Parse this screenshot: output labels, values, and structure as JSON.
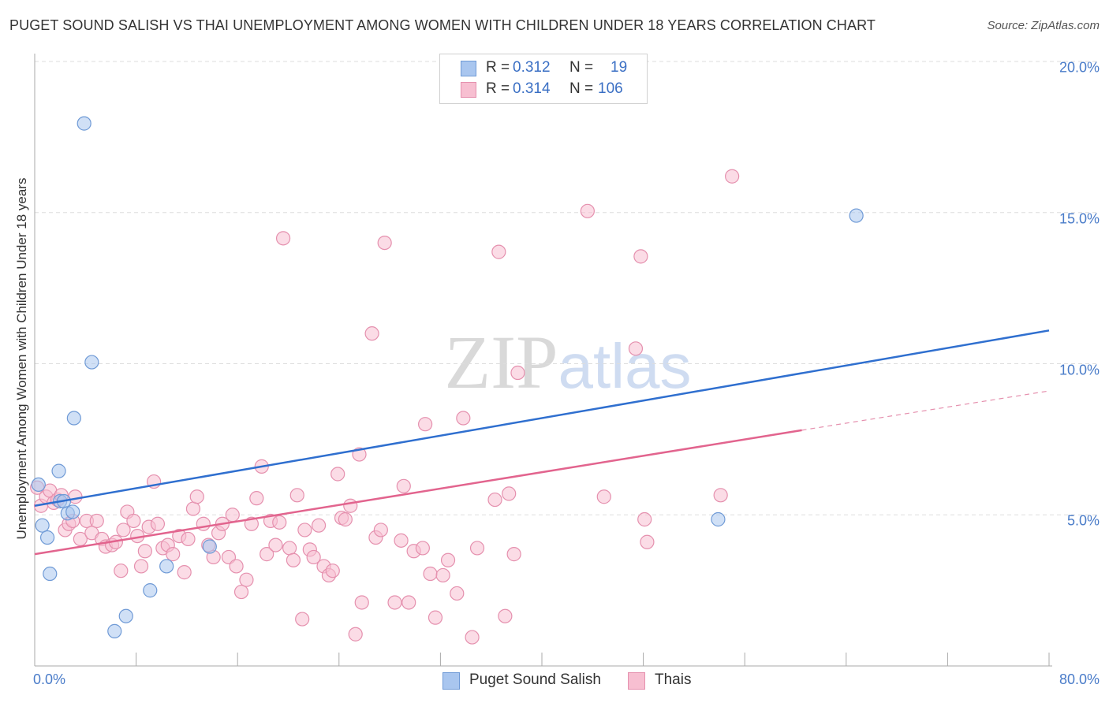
{
  "chart_data": {
    "type": "scatter",
    "title": "PUGET SOUND SALISH VS THAI UNEMPLOYMENT AMONG WOMEN WITH CHILDREN UNDER 18 YEARS CORRELATION CHART",
    "source": "Source: ZipAtlas.com",
    "xlabel": "",
    "ylabel": "Unemployment Among Women with Children Under 18 years",
    "xlim": [
      0,
      80
    ],
    "ylim": [
      0,
      20
    ],
    "x_tick_labels": [
      "0.0%",
      "80.0%"
    ],
    "y_ticks": [
      {
        "value": 5,
        "label": "5.0%"
      },
      {
        "value": 10,
        "label": "10.0%"
      },
      {
        "value": 15,
        "label": "15.0%"
      },
      {
        "value": 20,
        "label": "20.0%"
      }
    ],
    "watermark": "ZIPatlas",
    "legend": [
      {
        "name": "Puget Sound Salish",
        "color": "#a9c6ef",
        "edge": "#6f9ad6"
      },
      {
        "name": "Thais",
        "color": "#f7bfd1",
        "edge": "#e590ae"
      }
    ],
    "stats": [
      {
        "r_label": "R = ",
        "r": "0.312",
        "n_label": "N = ",
        "n": "19"
      },
      {
        "r_label": "R = ",
        "r": "0.314",
        "n_label": "N = ",
        "n": "106"
      }
    ],
    "series": [
      {
        "name": "Puget Sound Salish",
        "color": "#a9c6ef",
        "edge": "#6f9ad6",
        "line_color": "#2f6fcf",
        "trend": {
          "x0": 0,
          "y0": 5.3,
          "x1": 80,
          "y1": 11.1
        },
        "points": [
          {
            "x": 0.3,
            "y": 6.0
          },
          {
            "x": 0.6,
            "y": 4.65
          },
          {
            "x": 1.0,
            "y": 4.25
          },
          {
            "x": 1.2,
            "y": 3.05
          },
          {
            "x": 1.9,
            "y": 6.45
          },
          {
            "x": 2.0,
            "y": 5.45
          },
          {
            "x": 2.3,
            "y": 5.45
          },
          {
            "x": 2.6,
            "y": 5.05
          },
          {
            "x": 3.0,
            "y": 5.1
          },
          {
            "x": 3.1,
            "y": 8.2
          },
          {
            "x": 3.9,
            "y": 17.95
          },
          {
            "x": 4.5,
            "y": 10.05
          },
          {
            "x": 6.3,
            "y": 1.15
          },
          {
            "x": 7.2,
            "y": 1.65
          },
          {
            "x": 9.1,
            "y": 2.5
          },
          {
            "x": 10.4,
            "y": 3.3
          },
          {
            "x": 13.8,
            "y": 3.95
          },
          {
            "x": 53.9,
            "y": 4.85
          },
          {
            "x": 64.8,
            "y": 14.9
          }
        ]
      },
      {
        "name": "Thais",
        "color": "#f7bfd1",
        "edge": "#e590ae",
        "line_color": "#e2648e",
        "trend": {
          "x0": 0,
          "y0": 3.7,
          "x1": 60.5,
          "y1": 7.8
        },
        "trend_dashed_to": {
          "x": 80,
          "y": 9.1
        },
        "points": [
          {
            "x": 0.2,
            "y": 5.9
          },
          {
            "x": 0.5,
            "y": 5.3
          },
          {
            "x": 0.9,
            "y": 5.6
          },
          {
            "x": 1.2,
            "y": 5.8
          },
          {
            "x": 1.5,
            "y": 5.4
          },
          {
            "x": 1.8,
            "y": 5.5
          },
          {
            "x": 2.1,
            "y": 5.65
          },
          {
            "x": 2.4,
            "y": 4.5
          },
          {
            "x": 2.7,
            "y": 4.7
          },
          {
            "x": 3.0,
            "y": 4.8
          },
          {
            "x": 3.2,
            "y": 5.6
          },
          {
            "x": 3.6,
            "y": 4.2
          },
          {
            "x": 4.1,
            "y": 4.8
          },
          {
            "x": 4.5,
            "y": 4.4
          },
          {
            "x": 4.9,
            "y": 4.8
          },
          {
            "x": 5.3,
            "y": 4.2
          },
          {
            "x": 5.6,
            "y": 3.95
          },
          {
            "x": 6.1,
            "y": 4.0
          },
          {
            "x": 6.4,
            "y": 4.1
          },
          {
            "x": 6.8,
            "y": 3.15
          },
          {
            "x": 7.0,
            "y": 4.5
          },
          {
            "x": 7.3,
            "y": 5.1
          },
          {
            "x": 7.8,
            "y": 4.8
          },
          {
            "x": 8.1,
            "y": 4.3
          },
          {
            "x": 8.4,
            "y": 3.3
          },
          {
            "x": 8.7,
            "y": 3.8
          },
          {
            "x": 9.0,
            "y": 4.6
          },
          {
            "x": 9.4,
            "y": 6.1
          },
          {
            "x": 9.7,
            "y": 4.7
          },
          {
            "x": 10.1,
            "y": 3.9
          },
          {
            "x": 10.5,
            "y": 4.0
          },
          {
            "x": 10.9,
            "y": 3.7
          },
          {
            "x": 11.4,
            "y": 4.3
          },
          {
            "x": 11.8,
            "y": 3.1
          },
          {
            "x": 12.1,
            "y": 4.2
          },
          {
            "x": 12.5,
            "y": 5.2
          },
          {
            "x": 12.8,
            "y": 5.6
          },
          {
            "x": 13.3,
            "y": 4.7
          },
          {
            "x": 13.7,
            "y": 4.0
          },
          {
            "x": 14.1,
            "y": 3.6
          },
          {
            "x": 14.5,
            "y": 4.4
          },
          {
            "x": 14.8,
            "y": 4.7
          },
          {
            "x": 15.3,
            "y": 3.6
          },
          {
            "x": 15.6,
            "y": 5.0
          },
          {
            "x": 15.9,
            "y": 3.3
          },
          {
            "x": 16.3,
            "y": 2.45
          },
          {
            "x": 16.7,
            "y": 2.85
          },
          {
            "x": 17.1,
            "y": 4.7
          },
          {
            "x": 17.5,
            "y": 5.55
          },
          {
            "x": 17.9,
            "y": 6.6
          },
          {
            "x": 18.3,
            "y": 3.7
          },
          {
            "x": 18.6,
            "y": 4.8
          },
          {
            "x": 19.0,
            "y": 4.0
          },
          {
            "x": 19.3,
            "y": 4.75
          },
          {
            "x": 19.6,
            "y": 14.15
          },
          {
            "x": 20.1,
            "y": 3.9
          },
          {
            "x": 20.4,
            "y": 3.5
          },
          {
            "x": 20.7,
            "y": 5.65
          },
          {
            "x": 21.1,
            "y": 1.55
          },
          {
            "x": 21.3,
            "y": 4.5
          },
          {
            "x": 21.7,
            "y": 3.85
          },
          {
            "x": 22.0,
            "y": 3.6
          },
          {
            "x": 22.4,
            "y": 4.65
          },
          {
            "x": 22.8,
            "y": 3.3
          },
          {
            "x": 23.2,
            "y": 3.0
          },
          {
            "x": 23.5,
            "y": 3.15
          },
          {
            "x": 23.9,
            "y": 6.35
          },
          {
            "x": 24.2,
            "y": 4.9
          },
          {
            "x": 24.5,
            "y": 4.85
          },
          {
            "x": 24.9,
            "y": 5.3
          },
          {
            "x": 25.3,
            "y": 1.05
          },
          {
            "x": 25.6,
            "y": 7.0
          },
          {
            "x": 25.8,
            "y": 2.1
          },
          {
            "x": 26.6,
            "y": 11.0
          },
          {
            "x": 26.9,
            "y": 4.25
          },
          {
            "x": 27.3,
            "y": 4.5
          },
          {
            "x": 27.6,
            "y": 14.0
          },
          {
            "x": 28.4,
            "y": 2.1
          },
          {
            "x": 28.9,
            "y": 4.15
          },
          {
            "x": 29.1,
            "y": 5.95
          },
          {
            "x": 29.5,
            "y": 2.1
          },
          {
            "x": 29.9,
            "y": 3.8
          },
          {
            "x": 30.6,
            "y": 3.9
          },
          {
            "x": 30.8,
            "y": 8.0
          },
          {
            "x": 31.2,
            "y": 3.05
          },
          {
            "x": 31.6,
            "y": 1.6
          },
          {
            "x": 32.2,
            "y": 3.0
          },
          {
            "x": 32.6,
            "y": 3.5
          },
          {
            "x": 33.3,
            "y": 2.4
          },
          {
            "x": 33.8,
            "y": 8.2
          },
          {
            "x": 34.5,
            "y": 0.95
          },
          {
            "x": 34.9,
            "y": 3.9
          },
          {
            "x": 36.3,
            "y": 5.5
          },
          {
            "x": 36.6,
            "y": 13.7
          },
          {
            "x": 37.1,
            "y": 1.65
          },
          {
            "x": 37.4,
            "y": 5.7
          },
          {
            "x": 37.8,
            "y": 3.7
          },
          {
            "x": 38.1,
            "y": 9.7
          },
          {
            "x": 43.6,
            "y": 15.05
          },
          {
            "x": 44.9,
            "y": 5.6
          },
          {
            "x": 47.4,
            "y": 10.5
          },
          {
            "x": 47.8,
            "y": 13.55
          },
          {
            "x": 48.1,
            "y": 4.85
          },
          {
            "x": 48.3,
            "y": 4.1
          },
          {
            "x": 54.1,
            "y": 5.65
          },
          {
            "x": 55.0,
            "y": 16.2
          }
        ]
      }
    ]
  }
}
